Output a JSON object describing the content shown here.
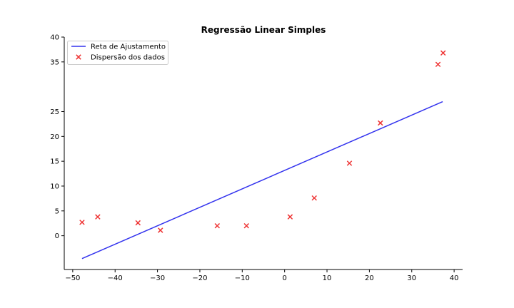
{
  "chart_data": {
    "type": "scatter",
    "title": "Regressão Linear Simples",
    "xlabel": "",
    "ylabel": "",
    "xlim": [
      -52,
      42
    ],
    "ylim": [
      -6.8,
      40
    ],
    "xticks": [
      -50,
      -40,
      -30,
      -20,
      -10,
      0,
      10,
      20,
      30,
      40
    ],
    "yticks": [
      0,
      5,
      10,
      15,
      20,
      25,
      35,
      40
    ],
    "grid": false,
    "legend_position": "top-left",
    "series": [
      {
        "name": "Reta de Ajustamento",
        "kind": "line",
        "color": "#3333ee",
        "x": [
          -47.8,
          37.3
        ],
        "y": [
          -4.6,
          27.0
        ]
      },
      {
        "name": "Dispersão dos dados",
        "kind": "scatter",
        "marker": "x",
        "color": "#ee3333",
        "x": [
          -47.8,
          -44.1,
          -34.6,
          -29.3,
          -15.9,
          -9.0,
          1.3,
          7.0,
          15.3,
          22.6,
          36.2,
          37.4
        ],
        "y": [
          2.7,
          3.8,
          2.6,
          1.1,
          2.0,
          2.0,
          3.8,
          7.6,
          14.6,
          22.7,
          34.5,
          36.8
        ]
      }
    ]
  }
}
